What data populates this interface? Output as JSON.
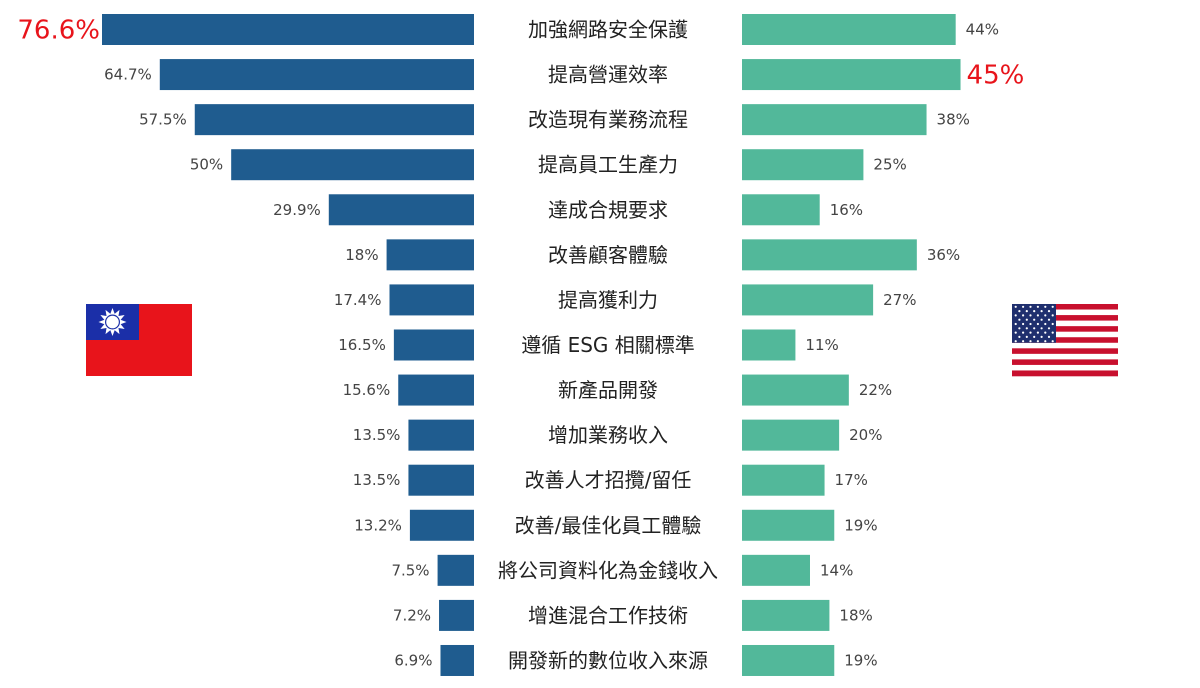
{
  "chart_data": {
    "type": "bar",
    "orientation": "horizontal-butterfly",
    "categories": [
      "加強網路安全保護",
      "提高營運效率",
      "改造現有業務流程",
      "提高員工生產力",
      "達成合規要求",
      "改善顧客體驗",
      "提高獲利力",
      "遵循 ESG 相關標準",
      "新產品開發",
      "增加業務收入",
      "改善人才招攬/留任",
      "改善/最佳化員工體驗",
      "將公司資料化為金錢收入",
      "增進混合工作技術",
      "開發新的數位收入來源"
    ],
    "series": [
      {
        "color": "#1f5c8f",
        "side": "left",
        "flag": "taiwan-flag",
        "values": [
          76.6,
          64.7,
          57.5,
          50,
          29.9,
          18,
          17.4,
          16.5,
          15.6,
          13.5,
          13.5,
          13.2,
          7.5,
          7.2,
          6.9
        ],
        "labels": [
          "76.6%",
          "64.7%",
          "57.5%",
          "50%",
          "29.9%",
          "18%",
          "17.4%",
          "16.5%",
          "15.6%",
          "13.5%",
          "13.5%",
          "13.2%",
          "7.5%",
          "7.2%",
          "6.9%"
        ],
        "highlight_index": 0
      },
      {
        "color": "#52b89a",
        "side": "right",
        "flag": "usa-flag",
        "values": [
          44,
          45,
          38,
          25,
          16,
          36,
          27,
          11,
          22,
          20,
          17,
          19,
          14,
          18,
          19
        ],
        "labels": [
          "44%",
          "45%",
          "38%",
          "25%",
          "16%",
          "36%",
          "27%",
          "11%",
          "22%",
          "20%",
          "17%",
          "19%",
          "14%",
          "18%",
          "19%"
        ],
        "highlight_index": 1
      }
    ],
    "highlight_color": "#e8141b",
    "xlim": [
      0,
      76.6
    ],
    "grid": false,
    "legend": "none"
  }
}
